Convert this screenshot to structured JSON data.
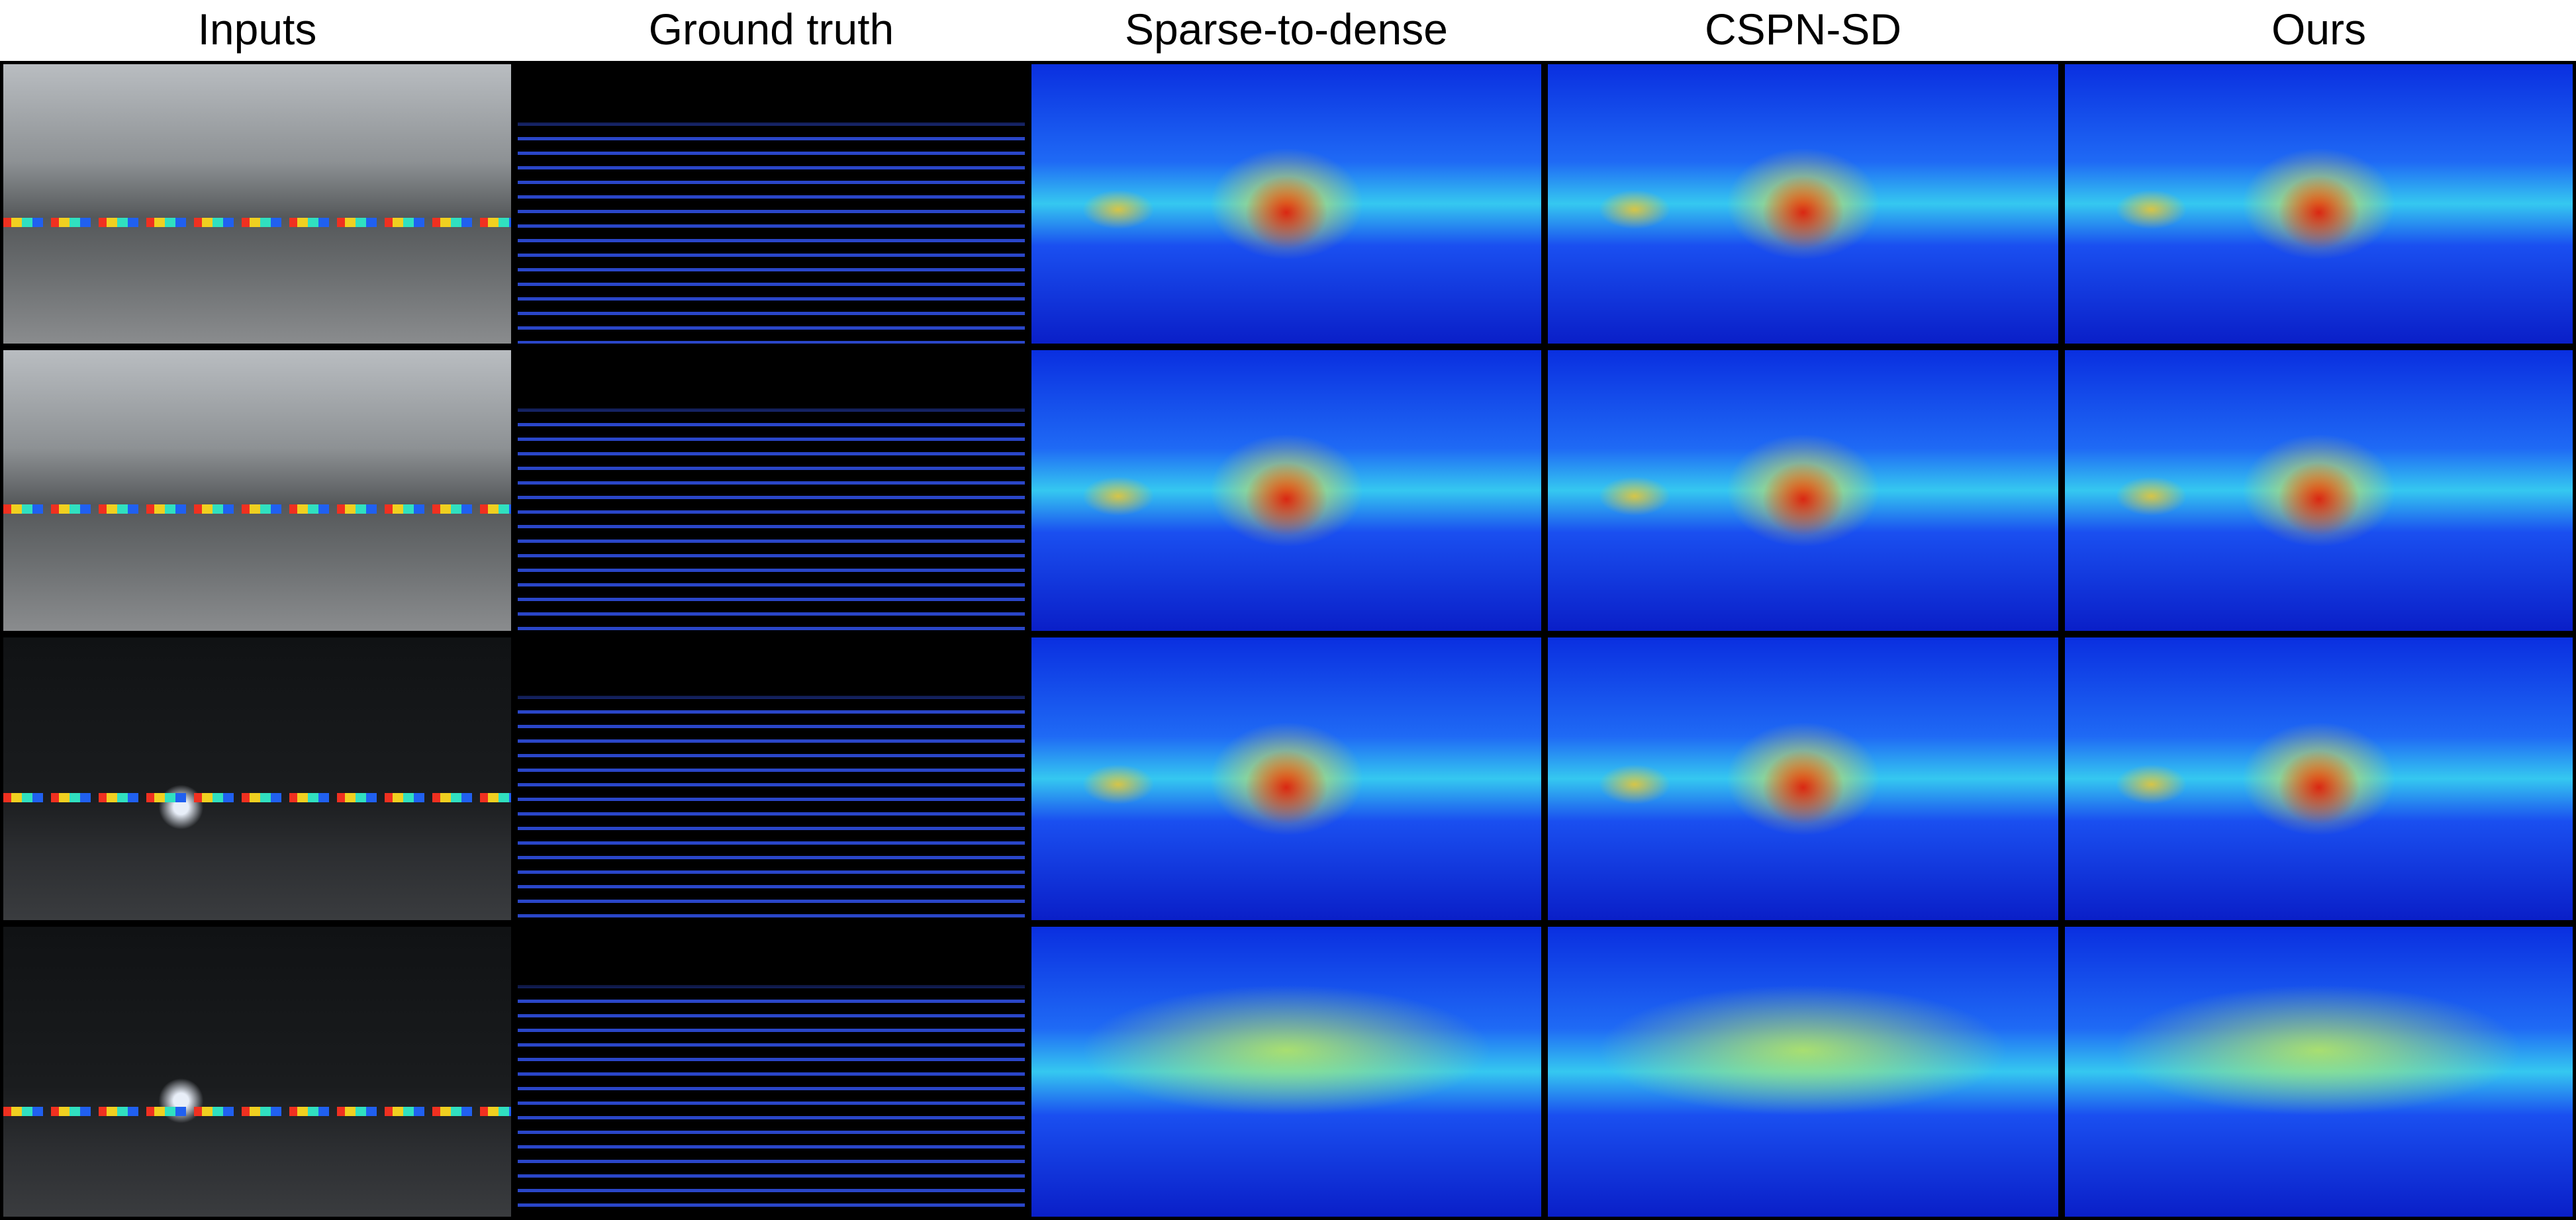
{
  "columns": [
    "Inputs",
    "Ground truth",
    "Sparse-to-dense",
    "CSPN-SD",
    "Ours"
  ]
}
